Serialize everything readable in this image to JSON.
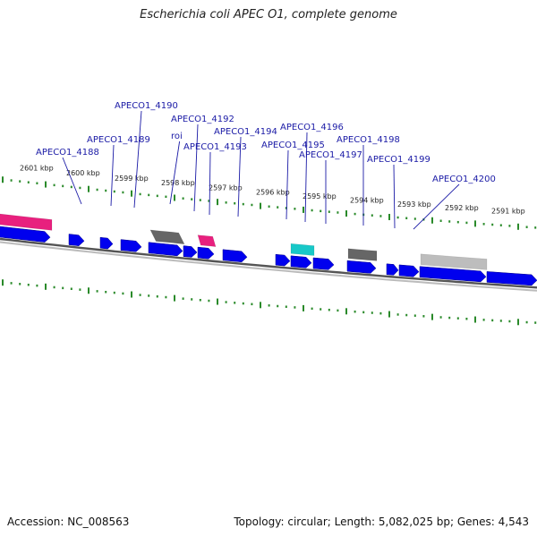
{
  "title": "Escherichia coli APEC O1, complete genome",
  "footer": {
    "accession": "Accession: NC_008563",
    "topology": "Topology: circular; Length: 5,082,025 bp; Genes: 4,543"
  },
  "colors": {
    "gene": "#0000ee",
    "label": "#1a1aa6",
    "tick": "#2a8a2a",
    "backbone": "#7a7a7a",
    "magenta": "#e8207e",
    "cyan": "#18c8c8",
    "dark_gray": "#666666",
    "light_gray": "#bdbdbd"
  },
  "scale_labels": [
    "2601 kbp",
    "2600 kbp",
    "2599 kbp",
    "2598 kbp",
    "2597 kbp",
    "2596 kbp",
    "2595 kbp",
    "2594 kbp",
    "2593 kbp",
    "2592 kbp",
    "2591 kbp"
  ],
  "gene_labels": [
    "APECO1_4188",
    "APECO1_4189",
    "APECO1_4190",
    "roi",
    "APECO1_4192",
    "APECO1_4193",
    "APECO1_4194",
    "APECO1_4195",
    "APECO1_4196",
    "APECO1_4197",
    "APECO1_4198",
    "APECO1_4199",
    "APECO1_4200"
  ]
}
